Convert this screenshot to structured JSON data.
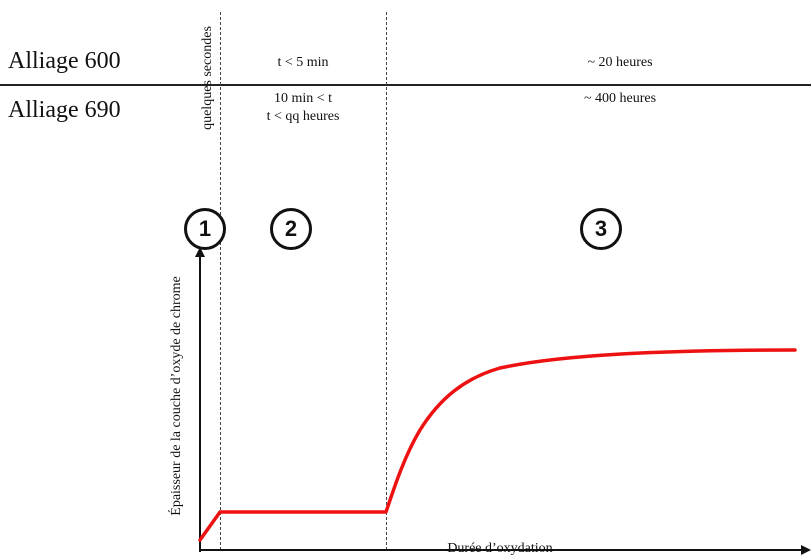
{
  "alloys": {
    "alloy_600": "Alliage 600",
    "alloy_690": "Alliage 690"
  },
  "phase1": {
    "number": "1",
    "duration_label": "quelques secondes"
  },
  "phase2": {
    "number": "2",
    "alloy_600_duration": "t < 5 min",
    "alloy_690_duration_line1": "10 min < t",
    "alloy_690_duration_line2": "t < qq heures"
  },
  "phase3": {
    "number": "3",
    "alloy_600_duration": "~ 20 heures",
    "alloy_690_duration": "~ 400 heures"
  },
  "axes": {
    "y_label": "Épaisseur de la couche d’oxyde de chrome",
    "x_label": "Durée d’oxydation"
  },
  "colors": {
    "curve": "#ee1111",
    "axis": "#111111",
    "divider": "#444444"
  }
}
